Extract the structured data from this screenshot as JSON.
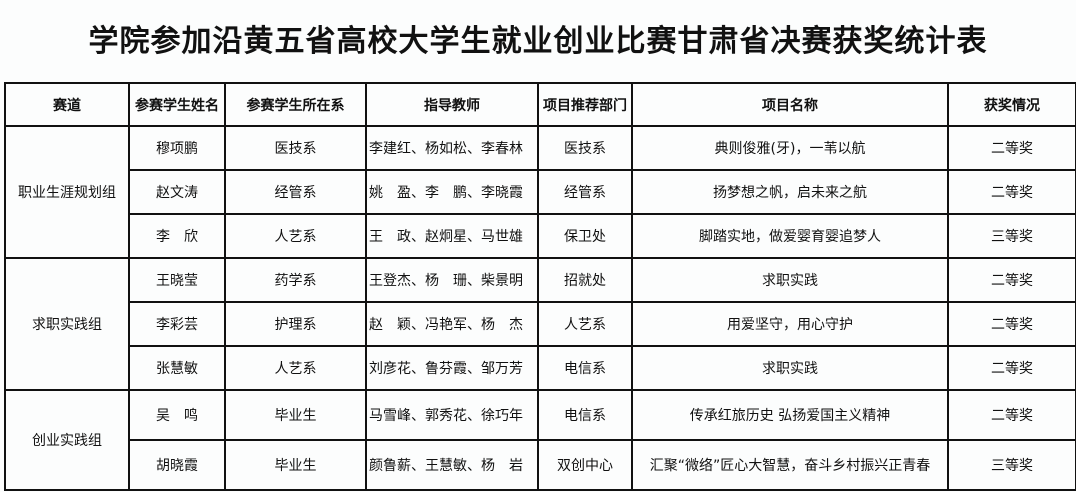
{
  "title": "学院参加沿黄五省高校大学生就业创业比赛甘肃省决赛获奖统计表",
  "headers": [
    "赛道",
    "参赛学生姓名",
    "参赛学生所在系",
    "指导教师",
    "项目推荐部门",
    "项目名称",
    "获奖情况"
  ],
  "groups": [
    {
      "track": "职业生涯规划组",
      "rows": [
        {
          "student": "穆项鹏",
          "dept": "医技系",
          "teachers": "李建红、杨如松、李春林",
          "recommender": "医技系",
          "project": "典则俊雅(牙)，一苇以航",
          "award": "二等奖"
        },
        {
          "student": "赵文涛",
          "dept": "经管系",
          "teachers": "姚　盈、李　鹏、李晓霞",
          "recommender": "经管系",
          "project": "扬梦想之帆，启未来之航",
          "award": "二等奖"
        },
        {
          "student": "李　欣",
          "dept": "人艺系",
          "teachers": "王　政、赵炯星、马世雄",
          "recommender": "保卫处",
          "project": "脚踏实地，做爱婴育婴追梦人",
          "award": "三等奖"
        }
      ]
    },
    {
      "track": "求职实践组",
      "rows": [
        {
          "student": "王晓莹",
          "dept": "药学系",
          "teachers": "王登杰、杨　珊、柴景明",
          "recommender": "招就处",
          "project": "求职实践",
          "award": "二等奖"
        },
        {
          "student": "李彩芸",
          "dept": "护理系",
          "teachers": "赵　颖、冯艳军、杨　杰",
          "recommender": "人艺系",
          "project": "用爱坚守，用心守护",
          "award": "二等奖"
        },
        {
          "student": "张慧敏",
          "dept": "人艺系",
          "teachers": "刘彦花、鲁芬霞、邹万芳",
          "recommender": "电信系",
          "project": "求职实践",
          "award": "二等奖"
        }
      ]
    },
    {
      "track": "创业实践组",
      "rows": [
        {
          "student": "吴　鸣",
          "dept": "毕业生",
          "teachers": "马雪峰、郭秀花、徐巧年",
          "recommender": "电信系",
          "project": "传承红旅历史  弘扬爱国主义精神",
          "award": "二等奖"
        },
        {
          "student": "胡晓霞",
          "dept": "毕业生",
          "teachers": "颜鲁薪、王慧敏、杨　岩",
          "recommender": "双创中心",
          "project": "汇聚“微络”匠心大智慧，奋斗乡村振兴正青春",
          "award": "三等奖"
        }
      ]
    }
  ]
}
